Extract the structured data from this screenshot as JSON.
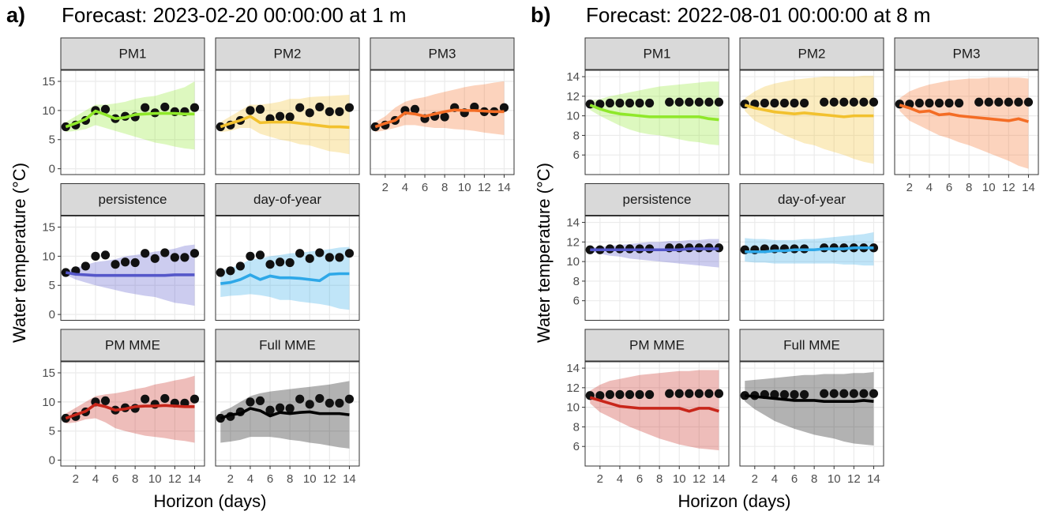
{
  "chart_data": [
    {
      "type": "line",
      "panel_label": "a)",
      "title": "Forecast: 2023-02-20 00:00:00 at 1 m",
      "y_label": "Water temperature (°C)",
      "x_label": "Horizon (days)",
      "x": [
        1,
        2,
        3,
        4,
        5,
        6,
        7,
        8,
        9,
        10,
        11,
        12,
        13,
        14
      ],
      "xlim": [
        0.5,
        15
      ],
      "xticks": [
        2,
        4,
        6,
        8,
        10,
        12,
        14
      ],
      "ylim": [
        -1,
        16.9
      ],
      "yticks": [
        0,
        5,
        10,
        15
      ],
      "grid": true,
      "observed": [
        7.2,
        7.5,
        8.3,
        10,
        10.2,
        8.6,
        9,
        8.9,
        10.5,
        9.6,
        10.6,
        9.8,
        9.8,
        10.5
      ],
      "series": [
        {
          "name": "PM1",
          "color": "#8fe82a",
          "values": [
            7.2,
            7.8,
            8.5,
            9.9,
            9.3,
            8.6,
            8.8,
            9.3,
            9.4,
            9.5,
            9.5,
            9.5,
            9.4,
            9.4
          ],
          "lower": [
            6.3,
            6.5,
            6.8,
            7.5,
            7,
            6.5,
            6,
            5.5,
            5,
            4.5,
            4.2,
            3.8,
            3.5,
            3.3
          ],
          "upper": [
            8,
            9,
            10,
            11,
            11,
            11.2,
            11.5,
            12,
            12.3,
            12.5,
            13,
            13.5,
            14,
            15
          ]
        },
        {
          "name": "PM2",
          "color": "#f2c12e",
          "values": [
            7.2,
            7.8,
            8.3,
            9,
            7.9,
            8,
            8,
            8,
            7.8,
            7.6,
            7.4,
            7.2,
            7.2,
            7.1
          ],
          "lower": [
            6.3,
            6.5,
            7,
            7,
            6,
            5.5,
            5,
            4.7,
            4.2,
            4,
            3.5,
            3,
            2.8,
            2.5
          ],
          "upper": [
            8,
            9,
            10,
            11,
            11,
            11.2,
            11.5,
            12,
            12,
            12.3,
            12.4,
            12.5,
            12.6,
            12.7
          ]
        },
        {
          "name": "PM3",
          "color": "#f46d25",
          "values": [
            7.2,
            7.8,
            8.3,
            9.6,
            9.4,
            9,
            9.4,
            9.8,
            10.1,
            10,
            10,
            9.9,
            9.8,
            9.8
          ],
          "lower": [
            6.3,
            6.6,
            7,
            7.5,
            7.5,
            7.2,
            7,
            7,
            6.8,
            6.7,
            6.5,
            6.2,
            6,
            5.8
          ],
          "upper": [
            8,
            9,
            10.5,
            11.5,
            12,
            12.3,
            12.8,
            13.2,
            13.6,
            14,
            14.3,
            14.5,
            14.8,
            15
          ]
        },
        {
          "name": "persistence",
          "color": "#5557c9",
          "values": [
            7.2,
            6.9,
            6.8,
            6.7,
            6.7,
            6.7,
            6.7,
            6.7,
            6.7,
            6.7,
            6.7,
            6.8,
            6.8,
            6.8
          ],
          "lower": [
            6.8,
            6,
            5.5,
            5,
            4.6,
            4.2,
            3.8,
            3.5,
            3.2,
            3,
            2.5,
            2,
            1.8,
            1.5
          ],
          "upper": [
            7.6,
            8,
            8.5,
            9,
            9.2,
            9.5,
            10,
            10.2,
            10.5,
            10.8,
            11,
            11.3,
            11.8,
            12
          ]
        },
        {
          "name": "day-of-year",
          "color": "#2ea8e8",
          "values": [
            5.3,
            5.5,
            6,
            6.8,
            6,
            6.6,
            6.3,
            6.3,
            6.2,
            6,
            5.8,
            6.9,
            7,
            7
          ],
          "lower": [
            3,
            3.2,
            3.3,
            3.5,
            3.3,
            3,
            2.5,
            2.5,
            2.2,
            2,
            1.8,
            1.5,
            1,
            0.8
          ],
          "upper": [
            7.5,
            8,
            8.5,
            9.5,
            9.6,
            10,
            10.2,
            10.5,
            10.6,
            10.8,
            11,
            11.2,
            11.5,
            11.6
          ]
        },
        {
          "name": "PM MME",
          "color": "#c8261a",
          "values": [
            7.2,
            7.8,
            8.4,
            9.6,
            9.2,
            8.6,
            8.8,
            9.2,
            9.3,
            9.3,
            9.4,
            9.3,
            9.2,
            9.2
          ],
          "lower": [
            6.3,
            6.5,
            7,
            7.2,
            6.5,
            5.5,
            5,
            4.6,
            4.2,
            4,
            3.8,
            3.5,
            3.3,
            3
          ],
          "upper": [
            8,
            9,
            10,
            11,
            11.3,
            11.5,
            11.8,
            12.2,
            12.5,
            13,
            13.3,
            13.7,
            14,
            14.5
          ]
        },
        {
          "name": "Full MME",
          "color": "#000000",
          "values": [
            7.2,
            7.8,
            8,
            8.9,
            8.5,
            7.6,
            8.2,
            8,
            8.2,
            8.3,
            8,
            8,
            8,
            7.8
          ],
          "lower": [
            3,
            3.2,
            3.5,
            4,
            4,
            4,
            3.8,
            3.5,
            3.3,
            3,
            2.8,
            2.5,
            2.2,
            2
          ],
          "upper": [
            8.3,
            9,
            10,
            11,
            11.5,
            11.8,
            12,
            12.2,
            12.4,
            12.6,
            12.8,
            13,
            13.3,
            13.6
          ]
        }
      ]
    },
    {
      "type": "line",
      "panel_label": "b)",
      "title": "Forecast: 2022-08-01 00:00:00 at 8 m",
      "y_label": "Water temperature (°C)",
      "x_label": "Horizon (days)",
      "x": [
        1,
        2,
        3,
        4,
        5,
        6,
        7,
        8,
        9,
        10,
        11,
        12,
        13,
        14
      ],
      "xlim": [
        0.5,
        15
      ],
      "xticks": [
        2,
        4,
        6,
        8,
        10,
        12,
        14
      ],
      "ylim": [
        4,
        14.65
      ],
      "yticks": [
        6,
        8,
        10,
        12,
        14
      ],
      "grid": true,
      "observed": [
        11.2,
        11.2,
        11.3,
        11.3,
        11.3,
        11.3,
        11.3,
        null,
        11.4,
        11.4,
        11.4,
        11.4,
        11.4,
        11.4
      ],
      "series": [
        {
          "name": "PM1",
          "color": "#8fe82a",
          "values": [
            11.1,
            10.7,
            10.4,
            10.2,
            10.1,
            10,
            9.9,
            9.9,
            9.9,
            9.9,
            9.9,
            9.9,
            9.7,
            9.6
          ],
          "lower": [
            10.6,
            10,
            9.5,
            9,
            8.6,
            8.3,
            8.1,
            8,
            7.8,
            7.6,
            7.4,
            7.3,
            7.1,
            7
          ],
          "upper": [
            11.6,
            11.7,
            12,
            12.2,
            12.4,
            12.6,
            12.8,
            13,
            13.1,
            13.2,
            13.3,
            13.4,
            13.5,
            13.5
          ]
        },
        {
          "name": "PM2",
          "color": "#f2c12e",
          "values": [
            11.1,
            10.8,
            10.6,
            10.4,
            10.3,
            10.2,
            10.3,
            10.2,
            10.1,
            10,
            9.9,
            10,
            10,
            10
          ],
          "lower": [
            10.5,
            9.5,
            9,
            8.5,
            8,
            7.6,
            7.2,
            7,
            6.6,
            6.3,
            6,
            5.6,
            5.3,
            5.1
          ],
          "upper": [
            11.8,
            12.5,
            13,
            13.3,
            13.5,
            13.7,
            13.8,
            13.9,
            14,
            14,
            14,
            14,
            14.1,
            14.1
          ]
        },
        {
          "name": "PM3",
          "color": "#f46d25",
          "values": [
            11.1,
            10.8,
            10.4,
            10.5,
            10.1,
            10.2,
            10,
            9.9,
            9.8,
            9.7,
            9.6,
            9.5,
            9.7,
            9.4
          ],
          "lower": [
            10.5,
            9.5,
            9,
            8.5,
            8,
            7.7,
            7.3,
            7,
            6.6,
            6.2,
            5.8,
            5.4,
            4.9,
            4.6
          ],
          "upper": [
            11.8,
            12.5,
            12.9,
            13.2,
            13.4,
            13.6,
            13.7,
            13.8,
            13.8,
            13.9,
            13.9,
            13.9,
            13.9,
            13.8
          ]
        },
        {
          "name": "persistence",
          "color": "#5557c9",
          "values": [
            11.2,
            11.2,
            11.2,
            11.2,
            11.2,
            11.2,
            11.2,
            11.2,
            11.2,
            11.2,
            11.3,
            11.3,
            11.3,
            11.3
          ],
          "lower": [
            11,
            10.8,
            10.6,
            10.5,
            10.3,
            10.2,
            10.1,
            10,
            9.9,
            9.8,
            9.7,
            9.6,
            9.5,
            9.4
          ],
          "upper": [
            11.4,
            11.5,
            11.6,
            11.7,
            11.8,
            11.9,
            12,
            12,
            12.1,
            12.1,
            12.2,
            12.2,
            12.3,
            12.3
          ]
        },
        {
          "name": "day-of-year",
          "color": "#2ea8e8",
          "values": [
            11,
            11,
            11,
            11.1,
            11.1,
            11.2,
            11.2,
            11.2,
            11.3,
            11.3,
            11.3,
            11.4,
            11.4,
            11.4
          ],
          "lower": [
            10,
            9.9,
            9.9,
            9.8,
            9.8,
            9.8,
            9.8,
            9.8,
            9.8,
            9.8,
            9.7,
            9.7,
            9.6,
            9.6
          ],
          "upper": [
            12.4,
            12.3,
            12.3,
            12.2,
            12.2,
            12.2,
            12.3,
            12.3,
            12.4,
            12.5,
            12.6,
            12.7,
            12.8,
            13
          ]
        },
        {
          "name": "PM MME",
          "color": "#c8261a",
          "values": [
            11,
            10.7,
            10.4,
            10.1,
            10,
            9.9,
            9.9,
            9.9,
            9.9,
            9.9,
            9.6,
            9.9,
            9.9,
            9.6
          ],
          "lower": [
            10.4,
            9.5,
            9,
            8.5,
            8,
            7.6,
            7.2,
            6.8,
            6.5,
            6.2,
            6,
            5.8,
            5.7,
            5.6
          ],
          "upper": [
            11.7,
            12.3,
            12.7,
            12.9,
            13.1,
            13.3,
            13.4,
            13.5,
            13.6,
            13.7,
            13.7,
            13.8,
            13.8,
            13.8
          ]
        },
        {
          "name": "Full MME",
          "color": "#000000",
          "values": [
            11.2,
            11.1,
            11,
            10.9,
            10.8,
            10.7,
            10.7,
            10.7,
            10.6,
            10.6,
            10.6,
            10.6,
            10.7,
            10.6
          ],
          "lower": [
            10.6,
            9.8,
            9.2,
            8.6,
            8.2,
            7.8,
            7.5,
            7.2,
            7,
            6.8,
            6.5,
            6.3,
            6.2,
            6.1
          ],
          "upper": [
            12.7,
            12.8,
            12.9,
            13,
            13.1,
            13.2,
            13.3,
            13.3,
            13.4,
            13.4,
            13.4,
            13.5,
            13.5,
            13.6
          ]
        }
      ]
    }
  ]
}
